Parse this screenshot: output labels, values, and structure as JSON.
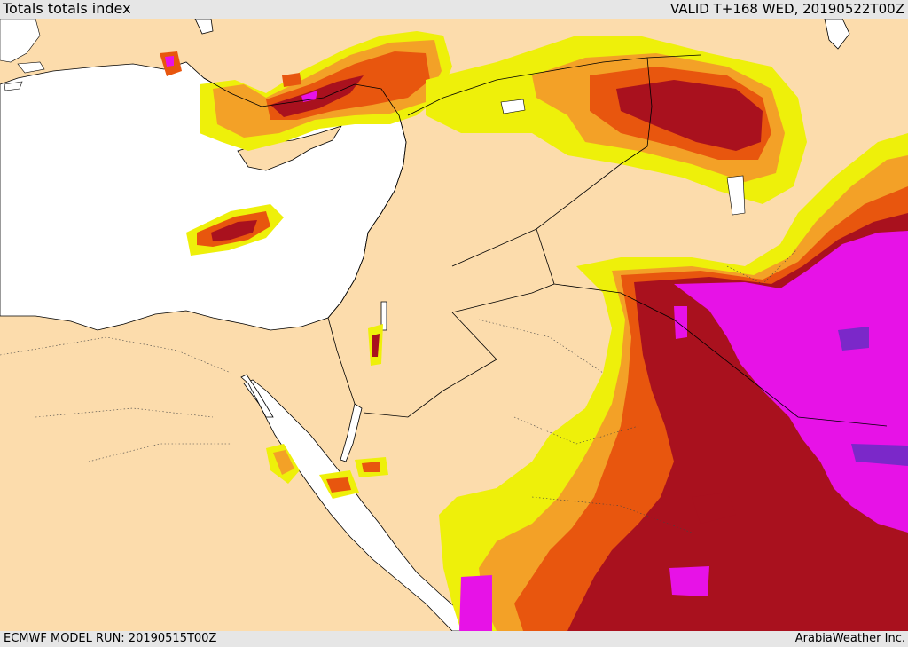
{
  "header": {
    "title": "Totals totals index",
    "valid_time": "VALID T+168 WED, 20190522T00Z"
  },
  "footer": {
    "model_run": "ECMWF MODEL RUN: 20190515T00Z",
    "credit": "ArabiaWeather Inc."
  },
  "map": {
    "region": "Eastern Mediterranean and Middle East",
    "field": "Totals totals index",
    "colors": {
      "land": "#fcdcac",
      "sea": "#ffffff",
      "level_1": "#eef00a",
      "level_2": "#f3a127",
      "level_3": "#e8560e",
      "level_4": "#a9111e",
      "level_5": "#e712e7",
      "level_6": "#7b28c9",
      "coastline": "#000000",
      "border": "#000000"
    }
  }
}
